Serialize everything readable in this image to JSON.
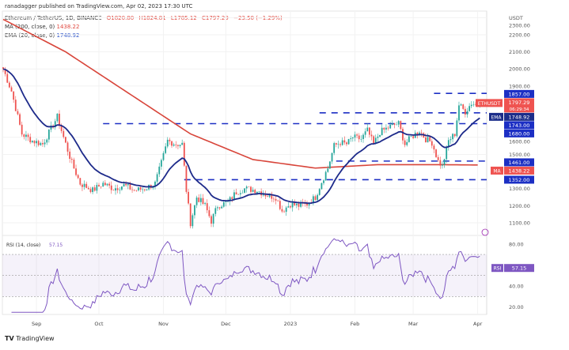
{
  "header": {
    "published": "ranadagger published on TradingView.com, Apr 02, 2023 17:30 UTC",
    "symbol": "Ethereum / TetherUS, 1D, BINANCE",
    "open": "O1820.80",
    "high": "H1824.81",
    "low": "L1785.12",
    "close": "C1797.29",
    "change": "−23.50 (−1.29%)",
    "ma_label": "MA (200, close, 0)",
    "ma_value": "1438.22",
    "ema_label": "EMA (20, close, 0)",
    "ema_value": "1748.92"
  },
  "chart_data": {
    "type": "candlestick",
    "title": "Ethereum / TetherUS, 1D, BINANCE",
    "currency": "USDT",
    "ylim": [
      1000,
      2350
    ],
    "y_ticks": [
      "2300.00",
      "2200.00",
      "2100.00",
      "2000.00",
      "1900.00",
      "1600.00",
      "1500.00",
      "1300.00",
      "1200.00",
      "1100.00"
    ],
    "x_ticks": [
      {
        "label": "Sep",
        "day": 16
      },
      {
        "label": "Oct",
        "day": 46
      },
      {
        "label": "Nov",
        "day": 77
      },
      {
        "label": "Dec",
        "day": 107
      },
      {
        "label": "2023",
        "day": 138
      },
      {
        "label": "Feb",
        "day": 169
      },
      {
        "label": "Mar",
        "day": 197
      },
      {
        "label": "Apr",
        "day": 228
      }
    ],
    "close_keypoints_day_price": [
      [
        0,
        2000
      ],
      [
        4,
        1870
      ],
      [
        9,
        1620
      ],
      [
        14,
        1580
      ],
      [
        19,
        1560
      ],
      [
        23,
        1650
      ],
      [
        26,
        1720
      ],
      [
        29,
        1600
      ],
      [
        33,
        1450
      ],
      [
        37,
        1330
      ],
      [
        43,
        1290
      ],
      [
        48,
        1330
      ],
      [
        53,
        1300
      ],
      [
        58,
        1320
      ],
      [
        63,
        1290
      ],
      [
        68,
        1300
      ],
      [
        73,
        1330
      ],
      [
        76,
        1450
      ],
      [
        79,
        1580
      ],
      [
        83,
        1560
      ],
      [
        86,
        1560
      ],
      [
        88,
        1290
      ],
      [
        90,
        1100
      ],
      [
        93,
        1250
      ],
      [
        97,
        1200
      ],
      [
        100,
        1110
      ],
      [
        103,
        1200
      ],
      [
        108,
        1220
      ],
      [
        112,
        1280
      ],
      [
        116,
        1300
      ],
      [
        122,
        1290
      ],
      [
        127,
        1260
      ],
      [
        131,
        1250
      ],
      [
        134,
        1170
      ],
      [
        138,
        1210
      ],
      [
        142,
        1200
      ],
      [
        146,
        1210
      ],
      [
        150,
        1250
      ],
      [
        153,
        1340
      ],
      [
        156,
        1420
      ],
      [
        159,
        1550
      ],
      [
        162,
        1570
      ],
      [
        165,
        1560
      ],
      [
        168,
        1600
      ],
      [
        172,
        1590
      ],
      [
        175,
        1640
      ],
      [
        178,
        1560
      ],
      [
        181,
        1630
      ],
      [
        184,
        1650
      ],
      [
        187,
        1670
      ],
      [
        190,
        1680
      ],
      [
        193,
        1560
      ],
      [
        196,
        1600
      ],
      [
        200,
        1640
      ],
      [
        203,
        1590
      ],
      [
        206,
        1570
      ],
      [
        209,
        1460
      ],
      [
        211,
        1430
      ],
      [
        214,
        1580
      ],
      [
        217,
        1620
      ],
      [
        219,
        1790
      ],
      [
        222,
        1750
      ],
      [
        225,
        1800
      ],
      [
        227,
        1790
      ],
      [
        229,
        1797
      ]
    ],
    "ma200_keypoints_day_price": [
      [
        0,
        2290
      ],
      [
        30,
        2100
      ],
      [
        60,
        1860
      ],
      [
        90,
        1620
      ],
      [
        120,
        1470
      ],
      [
        150,
        1420
      ],
      [
        180,
        1440
      ],
      [
        210,
        1440
      ],
      [
        229,
        1438
      ]
    ],
    "levels": [
      {
        "price": 1857,
        "label": "1857.00",
        "from_day": 207
      },
      {
        "price": 1743,
        "label": "1743.00",
        "from_day": 152
      },
      {
        "price": 1680,
        "label": "1680.00",
        "from_day": 48
      },
      {
        "price": 1461,
        "label": "1461.00",
        "from_day": 160
      },
      {
        "price": 1352,
        "label": "1352.00",
        "from_day": 87
      }
    ],
    "last_price": {
      "symbol": "ETHUSDT",
      "value": "1797.29",
      "countdown": "06:29:34"
    },
    "ema_tag": {
      "name": "EMA",
      "value": "1748.92"
    },
    "ma_tag": {
      "name": "MA",
      "value": "1438.22"
    },
    "rsi": {
      "label": "RSI (14, close)",
      "value": "57.15",
      "tag": "RSI",
      "ticks": [
        "80.00",
        "40.00",
        "20.00"
      ],
      "upper": 70,
      "lower": 30
    }
  },
  "footer": {
    "brand": "TradingView"
  }
}
